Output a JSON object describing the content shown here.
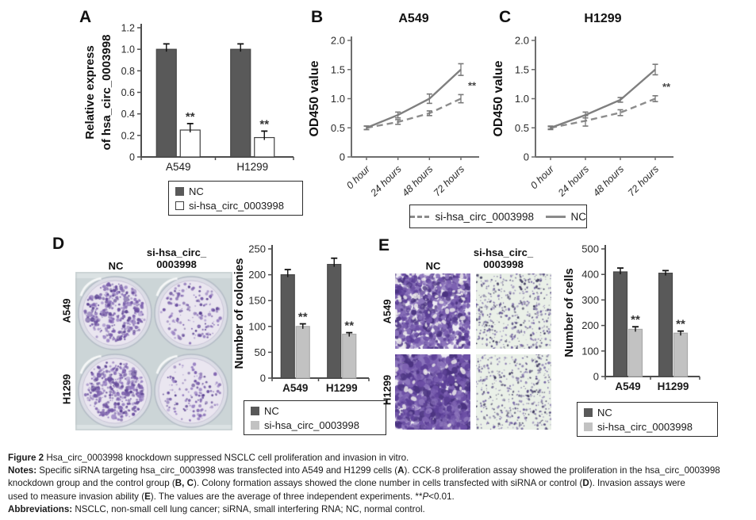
{
  "panels": {
    "a": {
      "label": "A"
    },
    "b": {
      "label": "B"
    },
    "c": {
      "label": "C"
    },
    "d": {
      "label": "D",
      "col1": "NC",
      "col2_line1": "si-hsa_circ_",
      "col2_line2": "0003998",
      "row1": "A549",
      "row2": "H1299"
    },
    "e": {
      "label": "E",
      "col1": "NC",
      "col2_line1": "si-hsa_circ_",
      "col2_line2": "0003998",
      "row1": "A549",
      "row2": "H1299"
    }
  },
  "chart_data": [
    {
      "id": "A",
      "type": "bar",
      "ylabel": "Relative express of hsa_circ_0003998",
      "ylabel_lines": [
        "Relative express",
        "of hsa_circ_0003998"
      ],
      "categories": [
        "A549",
        "H1299"
      ],
      "ylim": [
        0,
        1.2
      ],
      "ytick_step": 0.2,
      "series": [
        {
          "name": "NC",
          "values": [
            1.0,
            1.0
          ],
          "errors": [
            0.05,
            0.05
          ],
          "fill": "#595959",
          "stroke": "#474747"
        },
        {
          "name": "si-hsa_circ_0003998",
          "values": [
            0.25,
            0.18
          ],
          "errors": [
            0.06,
            0.06
          ],
          "fill": "#ffffff",
          "stroke": "#3f3f3f"
        }
      ],
      "significance": {
        "label": "**",
        "series": 1,
        "points": [
          0,
          1
        ]
      }
    },
    {
      "id": "B",
      "type": "line",
      "title": "A549",
      "ylabel": "OD450 value",
      "x": [
        "0 hour",
        "24 hours",
        "48 hours",
        "72 hours"
      ],
      "ylim": [
        0,
        2.0
      ],
      "ytick_step": 0.5,
      "series": [
        {
          "name": "NC",
          "style": "solid",
          "values": [
            0.5,
            0.72,
            1.0,
            1.5
          ],
          "errors": [
            0.03,
            0.05,
            0.08,
            0.1
          ]
        },
        {
          "name": "si-hsa_circ_0003998",
          "style": "dashed",
          "values": [
            0.5,
            0.6,
            0.75,
            1.0
          ],
          "errors": [
            0.03,
            0.04,
            0.04,
            0.07
          ]
        }
      ],
      "significance": {
        "label": "**",
        "series": 1,
        "point": 3
      }
    },
    {
      "id": "C",
      "type": "line",
      "title": "H1299",
      "ylabel": "OD450 value",
      "x": [
        "0 hour",
        "24 hours",
        "48 hours",
        "72 hours"
      ],
      "ylim": [
        0,
        2.0
      ],
      "ytick_step": 0.5,
      "series": [
        {
          "name": "NC",
          "style": "solid",
          "values": [
            0.5,
            0.72,
            0.98,
            1.5
          ],
          "errors": [
            0.02,
            0.05,
            0.04,
            0.09
          ]
        },
        {
          "name": "si-hsa_circ_0003998",
          "style": "dashed",
          "values": [
            0.5,
            0.62,
            0.76,
            1.0
          ],
          "errors": [
            0.03,
            0.09,
            0.05,
            0.05
          ]
        }
      ],
      "significance": {
        "label": "**",
        "series": 1,
        "point": 3
      }
    },
    {
      "id": "D",
      "type": "bar",
      "ylabel": "Number of colonies",
      "categories": [
        "A549",
        "H1299"
      ],
      "ylim": [
        0,
        250
      ],
      "ytick_step": 50,
      "series": [
        {
          "name": "NC",
          "values": [
            200,
            220
          ],
          "errors": [
            10,
            12
          ],
          "fill": "#595959",
          "stroke": "#474747"
        },
        {
          "name": "si-hsa_circ_0003998",
          "values": [
            100,
            85
          ],
          "errors": [
            5,
            3
          ],
          "fill": "#c2c2c2",
          "stroke": "#ababab"
        }
      ],
      "significance": {
        "label": "**",
        "series": 1,
        "points": [
          0,
          1
        ]
      }
    },
    {
      "id": "E",
      "type": "bar",
      "ylabel": "Number of cells",
      "categories": [
        "A549",
        "H1299"
      ],
      "ylim": [
        0,
        500
      ],
      "ytick_step": 100,
      "series": [
        {
          "name": "NC",
          "values": [
            410,
            405
          ],
          "errors": [
            15,
            10
          ],
          "fill": "#595959",
          "stroke": "#474747"
        },
        {
          "name": "si-hsa_circ_0003998",
          "values": [
            185,
            170
          ],
          "errors": [
            10,
            8
          ],
          "fill": "#c2c2c2",
          "stroke": "#ababab"
        }
      ],
      "significance": {
        "label": "**",
        "series": 1,
        "points": [
          0,
          1
        ]
      }
    }
  ],
  "legend_a": {
    "items": [
      {
        "label": "NC",
        "swatch": "dark"
      },
      {
        "label": "si-hsa_circ_0003998",
        "swatch": "white"
      }
    ]
  },
  "legend_bc": {
    "dashed_label": "si-hsa_circ_0003998",
    "solid_label": "NC"
  },
  "legend_d": {
    "items": [
      {
        "label": "NC",
        "swatch": "dark"
      },
      {
        "label": "si-hsa_circ_0003998",
        "swatch": "light"
      }
    ]
  },
  "legend_e": {
    "items": [
      {
        "label": "NC",
        "swatch": "dark"
      },
      {
        "label": "si-hsa_circ_0003998",
        "swatch": "light"
      }
    ]
  },
  "colors": {
    "bar_dark": "#595959",
    "bar_light": "#c2c2c2",
    "line_gray": "#7f7f7f",
    "stain_purple": "#7a5caa"
  },
  "caption": {
    "lines": [
      [
        {
          "t": "Figure 2 ",
          "b": 1
        },
        {
          "t": "Hsa_circ_0003998 knockdown suppressed NSCLC cell proliferation and invasion in vitro."
        }
      ],
      [
        {
          "t": "Notes: ",
          "b": 1
        },
        {
          "t": "Specific siRNA targeting hsa_circ_0003998 was transfected into A549 and H1299 cells ("
        },
        {
          "t": "A",
          "b": 1
        },
        {
          "t": "). CCK-8 proliferation assay showed the proliferation in the hsa_circ_0003998"
        }
      ],
      [
        {
          "t": "knockdown group and the control group ("
        },
        {
          "t": "B, C",
          "b": 1
        },
        {
          "t": "). Colony formation assays showed the clone number in cells transfected with siRNA or control ("
        },
        {
          "t": "D",
          "b": 1
        },
        {
          "t": "). Invasion assays were"
        }
      ],
      [
        {
          "t": "used to measure invasion ability ("
        },
        {
          "t": "E",
          "b": 1
        },
        {
          "t": "). The values are the average of three independent experiments. **"
        },
        {
          "t": "P",
          "i": 1
        },
        {
          "t": "<0.01."
        }
      ],
      [
        {
          "t": "Abbreviations: ",
          "b": 1
        },
        {
          "t": "NSCLC, non-small cell lung cancer; siRNA, small interfering RNA; NC, normal control."
        }
      ]
    ]
  }
}
